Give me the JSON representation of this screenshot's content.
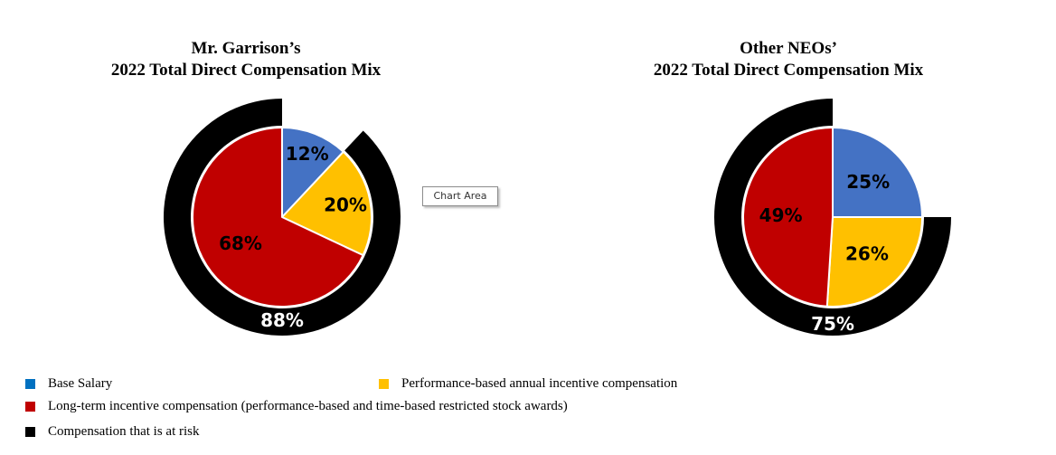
{
  "colors": {
    "base_salary": "#4472c4",
    "annual_incentive": "#ffc000",
    "long_term_incentive": "#c00000",
    "at_risk": "#000000"
  },
  "chart_data": [
    {
      "type": "pie",
      "title_line1": "Mr. Garrison’s",
      "title_line2": "2022 Total Direct Compensation Mix",
      "slices": [
        {
          "name": "Base Salary",
          "value": 12,
          "label": "12%"
        },
        {
          "name": "Performance-based annual incentive compensation",
          "value": 20,
          "label": "20%"
        },
        {
          "name": "Long-term incentive compensation",
          "value": 68,
          "label": "68%"
        }
      ],
      "at_risk": {
        "name": "Compensation that is at risk",
        "value": 88,
        "label": "88%"
      }
    },
    {
      "type": "pie",
      "title_line1": "Other NEOs’",
      "title_line2": "2022 Total Direct Compensation Mix",
      "slices": [
        {
          "name": "Base Salary",
          "value": 25,
          "label": "25%"
        },
        {
          "name": "Performance-based annual incentive compensation",
          "value": 26,
          "label": "26%"
        },
        {
          "name": "Long-term incentive compensation",
          "value": 49,
          "label": "49%"
        }
      ],
      "at_risk": {
        "name": "Compensation that is at risk",
        "value": 75,
        "label": "75%"
      }
    }
  ],
  "tooltip": "Chart Area",
  "legend": [
    {
      "label": "Base Salary",
      "color": "#4472c4"
    },
    {
      "label": "Performance-based annual incentive compensation",
      "color": "#ffc000"
    },
    {
      "label": "Long-term incentive compensation (performance-based and time-based restricted stock awards)",
      "color": "#c00000"
    },
    {
      "label": "Compensation that is at risk",
      "color": "#000000"
    }
  ]
}
